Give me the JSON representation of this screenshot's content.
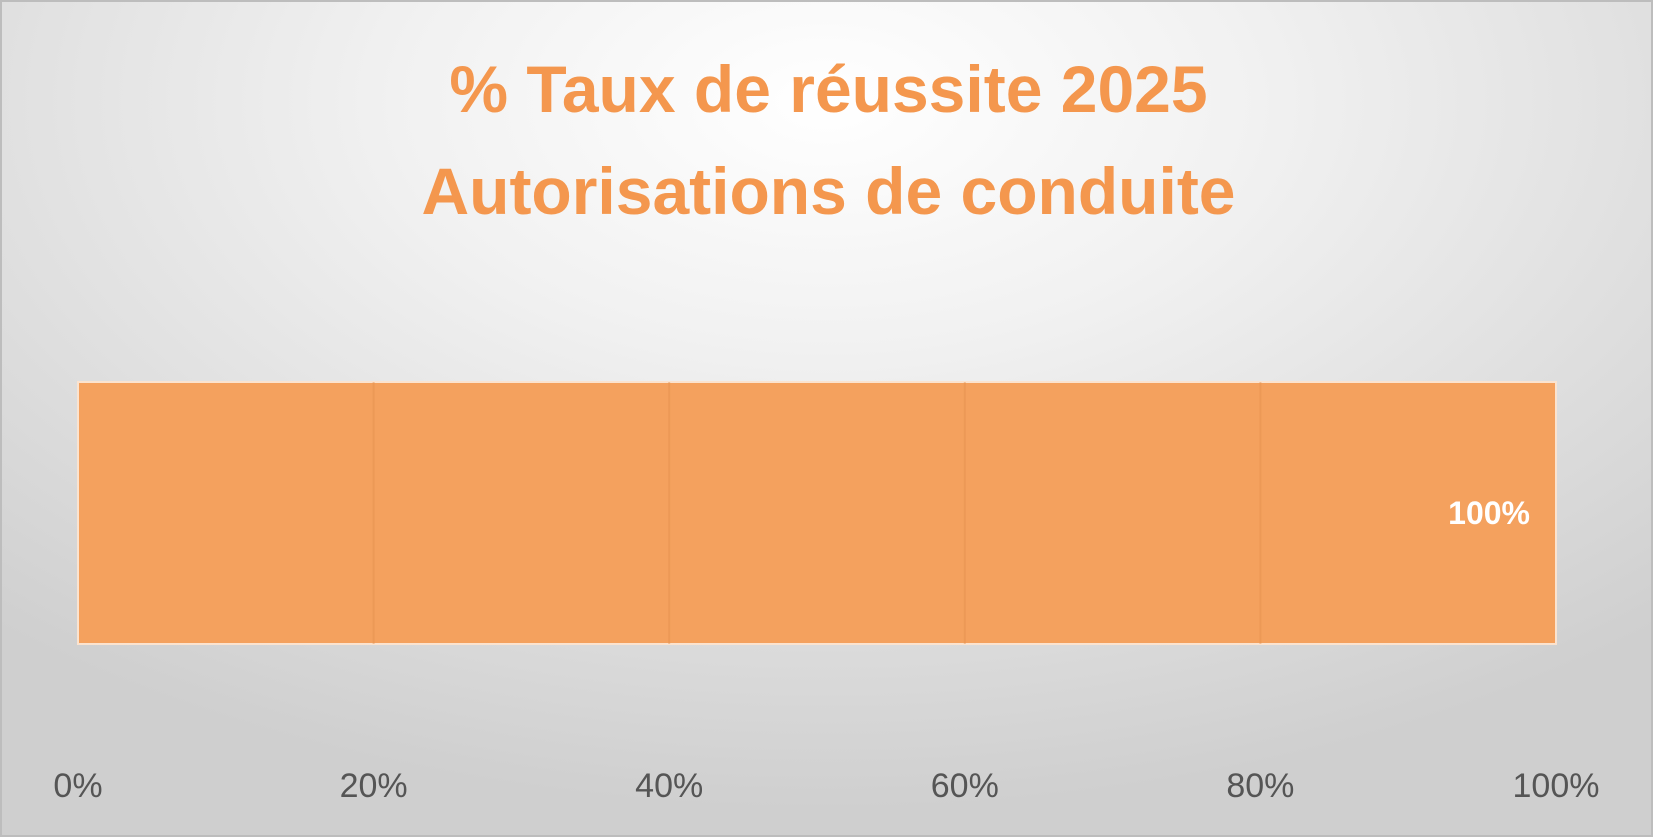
{
  "chart_data": {
    "type": "bar",
    "orientation": "horizontal",
    "title_lines": [
      "% Taux de réussite 2025",
      "Autorisations de conduite"
    ],
    "categories": [
      ""
    ],
    "values": [
      1.0
    ],
    "data_labels": [
      "100%"
    ],
    "xlim": [
      0,
      1
    ],
    "xticks": [
      0,
      0.2,
      0.4,
      0.6,
      0.8,
      1.0
    ],
    "xtick_labels": [
      "0%",
      "20%",
      "40%",
      "60%",
      "80%",
      "100%"
    ],
    "xlabel": "",
    "ylabel": "",
    "grid": true,
    "legend": "none",
    "bar_color": "#f4a15e",
    "title_color": "#f4974e"
  }
}
